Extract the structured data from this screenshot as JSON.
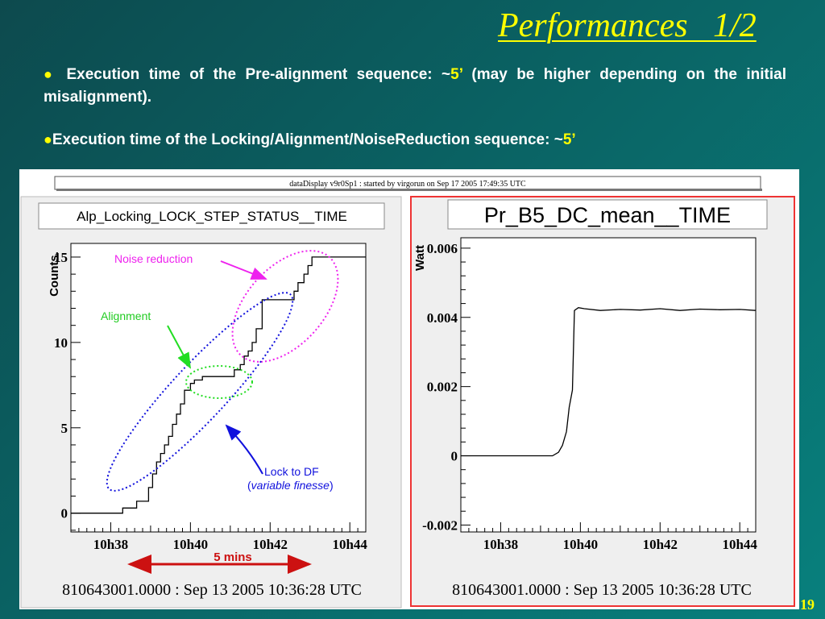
{
  "slide": {
    "title": "Performances   1/2",
    "bullet1": {
      "text_before": "Execution time of the Pre-alignment sequence: ~",
      "value": "5’",
      "text_after": " (may be higher depending on the initial misalignment)."
    },
    "bullet2": {
      "text_before": "Execution time of the Locking/Alignment/NoiseReduction sequence: ~",
      "value": "5’"
    },
    "page_number": "19"
  },
  "window_title": "dataDisplay v9r0Sp1 : started by virgorun on Sep 17 2005 17:49:35 UTC",
  "annotations": {
    "noise_reduction": "Noise reduction",
    "alignment": "Alignment",
    "lock_to_df": "Lock to DF",
    "variable_finesse": "variable finesse",
    "span_label": "5 mins"
  },
  "colors": {
    "noise_reduction": "#ee22ee",
    "alignment": "#22dd22",
    "lock_to_df": "#1111dd",
    "span_arrow": "#cc1111",
    "highlight_frame": "#ee3333",
    "title_yellow": "#ffff00"
  },
  "chart_data": [
    {
      "type": "line",
      "title": "Alp_Locking_LOCK_STEP_STATUS__TIME",
      "ylabel": "Counts.",
      "xlabel": "",
      "xticks": [
        "10h38",
        "10h40",
        "10h42",
        "10h44"
      ],
      "yticks": [
        "0",
        "5",
        "10",
        "15"
      ],
      "xlim": [
        37.0,
        44.4
      ],
      "ylim": [
        -1.1,
        15.8
      ],
      "timestamp": "810643001.0000 : Sep 13 2005 10:36:28 UTC",
      "series": [
        {
          "x": [
            37.0,
            38.3,
            38.3,
            38.65,
            38.65,
            38.95,
            38.95,
            39.05,
            39.05,
            39.15,
            39.15,
            39.25,
            39.25,
            39.35,
            39.35,
            39.45,
            39.45,
            39.55,
            39.55,
            39.65,
            39.65,
            39.75,
            39.75,
            39.85,
            39.85,
            40.0,
            40.0,
            40.1,
            40.1,
            40.3,
            40.3,
            40.55,
            40.55,
            41.1,
            41.1,
            41.25,
            41.25,
            41.35,
            41.35,
            41.45,
            41.45,
            41.55,
            41.55,
            41.65,
            41.65,
            41.8,
            41.8,
            42.1,
            42.1,
            42.6,
            42.6,
            42.7,
            42.7,
            42.85,
            42.85,
            42.95,
            42.95,
            43.05,
            43.05,
            44.4
          ],
          "y": [
            0,
            0,
            0.3,
            0.3,
            0.7,
            0.7,
            1.5,
            1.5,
            2.3,
            2.3,
            3.0,
            3.0,
            3.5,
            3.5,
            4.0,
            4.0,
            4.5,
            4.5,
            5.2,
            5.2,
            5.8,
            5.8,
            6.4,
            6.4,
            7.2,
            7.2,
            7.6,
            7.6,
            7.8,
            7.8,
            8.0,
            8.0,
            8.0,
            8.0,
            8.4,
            8.4,
            8.7,
            8.7,
            9.2,
            9.2,
            9.5,
            9.5,
            10.0,
            10.0,
            10.8,
            10.8,
            12.5,
            12.5,
            12.5,
            12.5,
            13.0,
            13.0,
            13.5,
            13.5,
            14.0,
            14.0,
            14.5,
            14.5,
            15.0,
            15.0
          ]
        }
      ]
    },
    {
      "type": "line",
      "title": "Pr_B5_DC_mean__TIME",
      "ylabel": "Watt",
      "xlabel": "",
      "xticks": [
        "10h38",
        "10h40",
        "10h42",
        "10h44"
      ],
      "yticks": [
        "-0.002",
        "0",
        "0.002",
        "0.004",
        "0.006"
      ],
      "xlim": [
        37.0,
        44.4
      ],
      "ylim": [
        -0.0022,
        0.0063
      ],
      "timestamp": "810643001.0000 : Sep 13 2005 10:36:28 UTC",
      "series": [
        {
          "x": [
            37.0,
            38.0,
            39.0,
            39.3,
            39.45,
            39.55,
            39.65,
            39.72,
            39.8,
            39.85,
            39.95,
            40.1,
            40.5,
            41.0,
            41.5,
            42.0,
            42.5,
            43.0,
            43.5,
            44.0,
            44.4
          ],
          "y": [
            0.0,
            0.0,
            0.0,
            0.0,
            0.0001,
            0.0003,
            0.0007,
            0.0014,
            0.0019,
            0.0042,
            0.00428,
            0.00425,
            0.0042,
            0.00423,
            0.00421,
            0.00425,
            0.0042,
            0.00424,
            0.00422,
            0.00423,
            0.0042
          ]
        }
      ]
    }
  ]
}
